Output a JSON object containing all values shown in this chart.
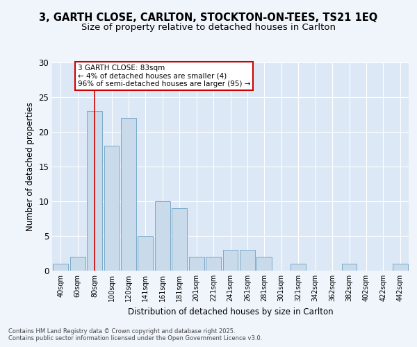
{
  "title_line1": "3, GARTH CLOSE, CARLTON, STOCKTON-ON-TEES, TS21 1EQ",
  "title_line2": "Size of property relative to detached houses in Carlton",
  "xlabel": "Distribution of detached houses by size in Carlton",
  "ylabel": "Number of detached properties",
  "categories": [
    "40sqm",
    "60sqm",
    "80sqm",
    "100sqm",
    "120sqm",
    "141sqm",
    "161sqm",
    "181sqm",
    "201sqm",
    "221sqm",
    "241sqm",
    "261sqm",
    "281sqm",
    "301sqm",
    "321sqm",
    "342sqm",
    "362sqm",
    "382sqm",
    "402sqm",
    "422sqm",
    "442sqm"
  ],
  "values": [
    1,
    2,
    23,
    18,
    22,
    5,
    10,
    9,
    2,
    2,
    3,
    3,
    2,
    0,
    1,
    0,
    0,
    1,
    0,
    0,
    1
  ],
  "bar_color": "#c9daea",
  "bar_edge_color": "#7aaac8",
  "vline_x": 2,
  "vline_color": "#cc0000",
  "annotation_text": "3 GARTH CLOSE: 83sqm\n← 4% of detached houses are smaller (4)\n96% of semi-detached houses are larger (95) →",
  "annotation_box_color": "#ffffff",
  "annotation_box_edge": "#cc0000",
  "ylim": [
    0,
    30
  ],
  "yticks": [
    0,
    5,
    10,
    15,
    20,
    25,
    30
  ],
  "background_color": "#dce8f5",
  "grid_color": "#ffffff",
  "fig_bg_color": "#f0f5fc",
  "title1_fontsize": 10.5,
  "title2_fontsize": 9.5,
  "footer_line1": "Contains HM Land Registry data © Crown copyright and database right 2025.",
  "footer_line2": "Contains public sector information licensed under the Open Government Licence v3.0."
}
